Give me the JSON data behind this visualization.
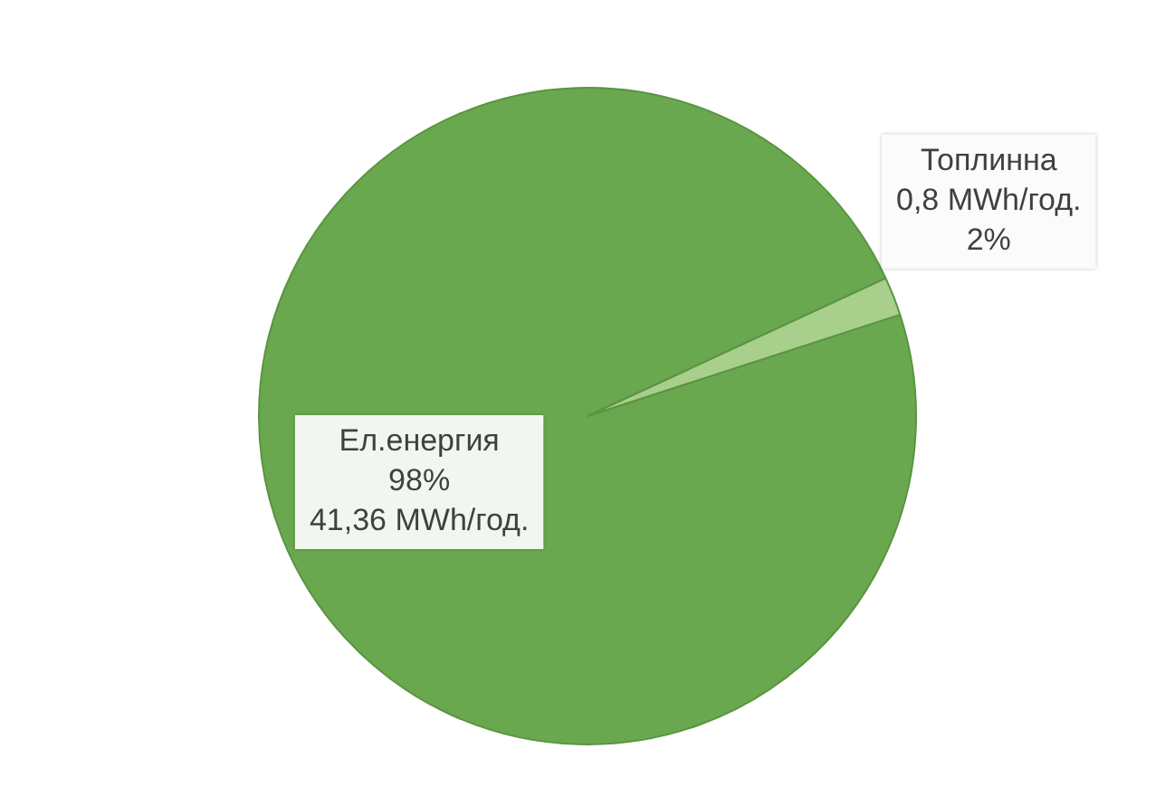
{
  "chart_data": {
    "type": "pie",
    "categories": [
      "Ел.енергия",
      "Топлинна"
    ],
    "values": [
      41.36,
      0.8
    ],
    "colors": [
      "#6aa84f",
      "#a8cf8c"
    ],
    "value_labels": [
      "98%\n41,36 MWh/год.",
      "0,8 MWh/год.\n2%"
    ],
    "legend": false
  }
}
